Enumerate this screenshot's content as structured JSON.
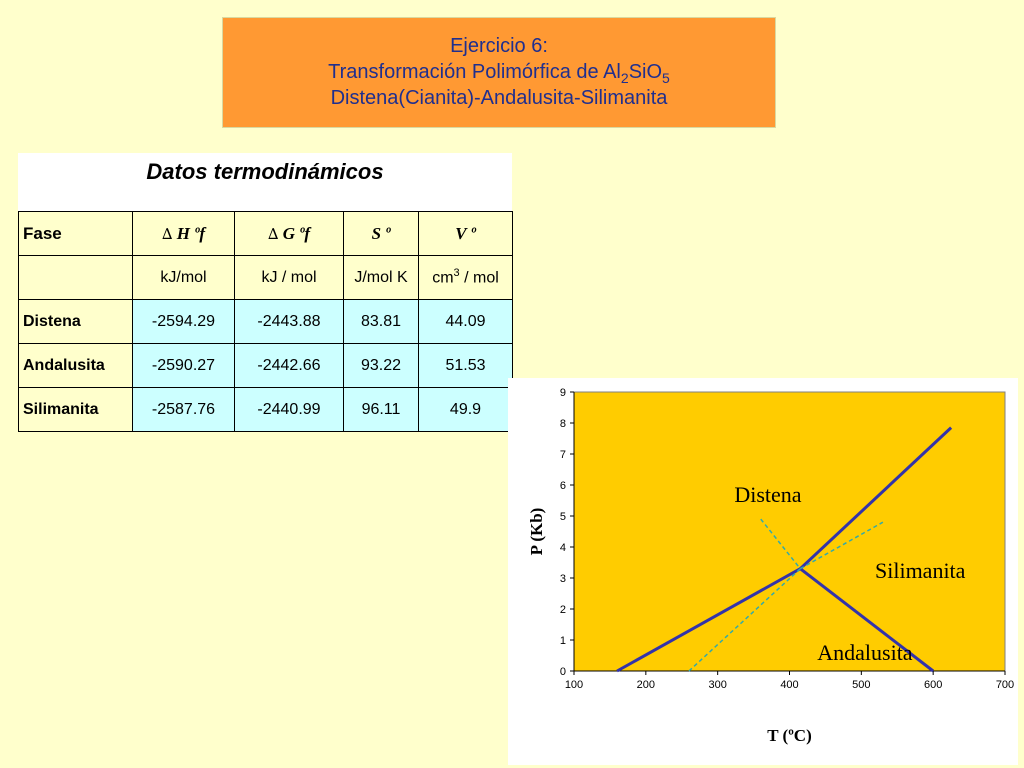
{
  "slide": {
    "title_line1": "Ejercicio 6:",
    "title_line2_pre": "Transformación Polimórfica de Al",
    "title_line2_sub1": "2",
    "title_line2_mid": "SiO",
    "title_line2_sub2": "5",
    "title_line3": "Distena(Cianita)-Andalusita-Silimanita"
  },
  "table": {
    "heading": "Datos termodinámicos",
    "headers": {
      "fase": "Fase",
      "dh_symbol": "∆",
      "dh_label": "H ºf",
      "dg_symbol": "∆",
      "dg_label": "G ºf",
      "s_label": "S º",
      "v_label": "V º"
    },
    "units": {
      "dh": "kJ/mol",
      "dg": "kJ / mol",
      "s": "J/mol K",
      "v_pre": "cm",
      "v_sup": "3",
      "v_post": " / mol"
    },
    "rows": [
      {
        "name": "Distena",
        "dh": "-2594.29",
        "dg": "-2443.88",
        "s": "83.81",
        "v": "44.09"
      },
      {
        "name": "Andalusita",
        "dh": "-2590.27",
        "dg": "-2442.66",
        "s": "93.22",
        "v": "51.53"
      },
      {
        "name": "Silimanita",
        "dh": "-2587.76",
        "dg": "-2440.99",
        "s": "96.11",
        "v": "49.9"
      }
    ]
  },
  "colors": {
    "plot_bg": "#ffcc00",
    "line": "#3333aa",
    "dashed": "#33aaaa"
  },
  "chart_data": {
    "type": "line",
    "xlabel": "T  (ºC)",
    "ylabel": "P  (Kb)",
    "xlim": [
      100,
      700
    ],
    "ylim": [
      0,
      9
    ],
    "xticks": [
      100,
      200,
      300,
      400,
      500,
      600,
      700
    ],
    "yticks": [
      0,
      1,
      2,
      3,
      4,
      5,
      6,
      7,
      8,
      9
    ],
    "grid": false,
    "series": [
      {
        "style": "solid",
        "points": [
          [
            160,
            0
          ],
          [
            415,
            3.3
          ]
        ]
      },
      {
        "style": "solid",
        "points": [
          [
            415,
            3.3
          ],
          [
            625,
            7.85
          ]
        ]
      },
      {
        "style": "solid",
        "points": [
          [
            415,
            3.3
          ],
          [
            600,
            0
          ]
        ]
      },
      {
        "style": "dashed",
        "points": [
          [
            360,
            4.9
          ],
          [
            415,
            3.3
          ]
        ]
      },
      {
        "style": "dashed",
        "points": [
          [
            415,
            3.3
          ],
          [
            530,
            4.8
          ]
        ]
      },
      {
        "style": "dashed",
        "points": [
          [
            260,
            0
          ],
          [
            415,
            3.3
          ]
        ]
      }
    ],
    "annotations": [
      {
        "text": "Distena",
        "x": 370,
        "y": 5.45
      },
      {
        "text": "Silimanita",
        "x": 582,
        "y": 3.0
      },
      {
        "text": "Andalusita",
        "x": 505,
        "y": 0.35
      }
    ]
  }
}
